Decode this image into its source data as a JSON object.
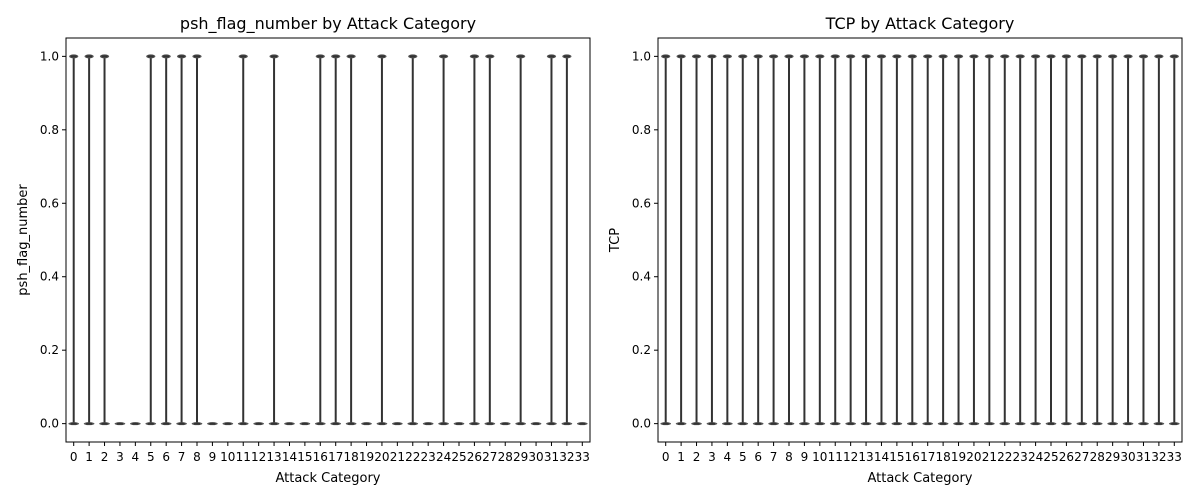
{
  "chart_data": [
    {
      "type": "violin",
      "title": "psh_flag_number by Attack Category",
      "xlabel": "Attack Category",
      "ylabel": "psh_flag_number",
      "categories": [
        "0",
        "1",
        "2",
        "3",
        "4",
        "5",
        "6",
        "7",
        "8",
        "9",
        "10",
        "11",
        "12",
        "13",
        "14",
        "15",
        "16",
        "17",
        "18",
        "19",
        "20",
        "21",
        "22",
        "23",
        "24",
        "25",
        "26",
        "27",
        "28",
        "29",
        "30",
        "31",
        "32",
        "33"
      ],
      "yticks": [
        "0.0",
        "0.2",
        "0.4",
        "0.6",
        "0.8",
        "1.0"
      ],
      "ylim": [
        -0.05,
        1.05
      ],
      "has_value_1": [
        true,
        true,
        true,
        false,
        false,
        true,
        true,
        true,
        true,
        false,
        false,
        true,
        false,
        true,
        false,
        false,
        true,
        true,
        true,
        false,
        true,
        false,
        true,
        false,
        true,
        false,
        true,
        true,
        false,
        true,
        false,
        true,
        true,
        false
      ],
      "has_value_0": [
        true,
        true,
        true,
        true,
        true,
        true,
        true,
        true,
        true,
        true,
        true,
        true,
        true,
        true,
        true,
        true,
        true,
        true,
        true,
        true,
        true,
        true,
        true,
        true,
        true,
        true,
        true,
        true,
        true,
        true,
        true,
        true,
        true,
        true
      ],
      "grid": false
    },
    {
      "type": "violin",
      "title": "TCP by Attack Category",
      "xlabel": "Attack Category",
      "ylabel": "TCP",
      "categories": [
        "0",
        "1",
        "2",
        "3",
        "4",
        "5",
        "6",
        "7",
        "8",
        "9",
        "10",
        "11",
        "12",
        "13",
        "14",
        "15",
        "16",
        "17",
        "18",
        "19",
        "20",
        "21",
        "22",
        "23",
        "24",
        "25",
        "26",
        "27",
        "28",
        "29",
        "30",
        "31",
        "32",
        "33"
      ],
      "yticks": [
        "0.0",
        "0.2",
        "0.4",
        "0.6",
        "0.8",
        "1.0"
      ],
      "ylim": [
        -0.05,
        1.05
      ],
      "has_value_1": [
        true,
        true,
        true,
        true,
        true,
        true,
        true,
        true,
        true,
        true,
        true,
        true,
        true,
        true,
        true,
        true,
        true,
        true,
        true,
        true,
        true,
        true,
        true,
        true,
        true,
        true,
        true,
        true,
        true,
        true,
        true,
        true,
        true,
        true
      ],
      "has_value_0": [
        true,
        true,
        true,
        true,
        true,
        true,
        true,
        true,
        true,
        true,
        true,
        true,
        true,
        true,
        true,
        true,
        true,
        true,
        true,
        true,
        true,
        true,
        true,
        true,
        true,
        true,
        true,
        true,
        true,
        true,
        true,
        true,
        true,
        true
      ],
      "grid": false
    }
  ],
  "colors": {
    "violin": "#555555",
    "line": "#333333",
    "frame": "#000000"
  }
}
